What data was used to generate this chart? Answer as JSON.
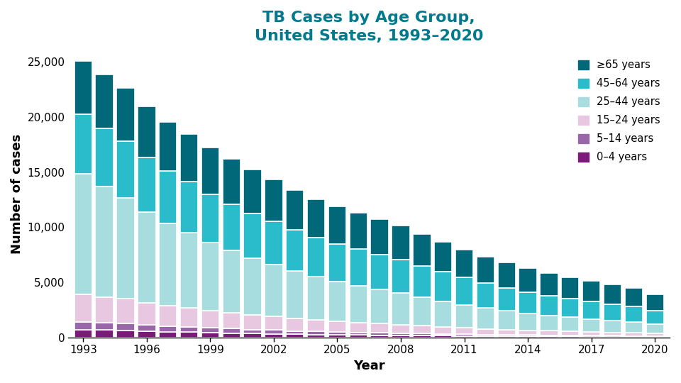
{
  "title": "TB Cases by Age Group,\nUnited States, 1993–2020",
  "xlabel": "Year",
  "ylabel": "Number of cases",
  "title_color": "#007A8C",
  "years": [
    1993,
    1994,
    1995,
    1996,
    1997,
    1998,
    1999,
    2000,
    2001,
    2002,
    2003,
    2004,
    2005,
    2006,
    2007,
    2008,
    2009,
    2010,
    2011,
    2012,
    2013,
    2014,
    2015,
    2016,
    2017,
    2018,
    2019,
    2020
  ],
  "age_groups": [
    {
      "label": "0–4 years",
      "color": "#7B1A7B",
      "values": [
        739,
        682,
        659,
        601,
        536,
        493,
        432,
        393,
        357,
        327,
        297,
        272,
        252,
        229,
        218,
        204,
        183,
        168,
        153,
        139,
        129,
        122,
        111,
        103,
        95,
        89,
        82,
        69
      ]
    },
    {
      "label": "5–14 years",
      "color": "#9966AA",
      "values": [
        676,
        637,
        617,
        555,
        521,
        483,
        449,
        418,
        379,
        352,
        313,
        286,
        261,
        247,
        231,
        214,
        196,
        179,
        162,
        147,
        133,
        118,
        106,
        97,
        87,
        80,
        72,
        62
      ]
    },
    {
      "label": "15–24 years",
      "color": "#E8C8E0",
      "values": [
        2528,
        2358,
        2228,
        2025,
        1839,
        1717,
        1567,
        1445,
        1328,
        1229,
        1129,
        1038,
        957,
        884,
        824,
        766,
        694,
        634,
        573,
        517,
        471,
        431,
        396,
        364,
        336,
        310,
        285,
        246
      ]
    },
    {
      "label": "25–44 years",
      "color": "#A8DDE0",
      "values": [
        10887,
        9978,
        9126,
        8218,
        7432,
        6838,
        6176,
        5637,
        5157,
        4740,
        4317,
        3929,
        3630,
        3337,
        3091,
        2855,
        2574,
        2327,
        2096,
        1884,
        1699,
        1537,
        1403,
        1278,
        1172,
        1073,
        986,
        840
      ]
    },
    {
      "label": "45–64 years",
      "color": "#2BBCCC",
      "values": [
        5416,
        5290,
        5155,
        4948,
        4739,
        4590,
        4383,
        4201,
        4038,
        3876,
        3678,
        3516,
        3413,
        3315,
        3181,
        3039,
        2839,
        2649,
        2453,
        2265,
        2079,
        1921,
        1786,
        1662,
        1564,
        1469,
        1397,
        1218
      ]
    },
    {
      "label": "≥65 years",
      "color": "#006878",
      "values": [
        4795,
        4914,
        4839,
        4606,
        4477,
        4299,
        4187,
        4088,
        3939,
        3793,
        3619,
        3481,
        3381,
        3278,
        3172,
        3050,
        2879,
        2718,
        2554,
        2405,
        2276,
        2166,
        2052,
        1952,
        1863,
        1774,
        1699,
        1481
      ]
    }
  ],
  "ylim": [
    0,
    26000
  ],
  "yticks": [
    0,
    5000,
    10000,
    15000,
    20000,
    25000
  ],
  "ytick_labels": [
    "0",
    "5,000",
    "10,000",
    "15,000",
    "20,000",
    "25,000"
  ],
  "xticks": [
    1993,
    1996,
    1999,
    2002,
    2005,
    2008,
    2011,
    2014,
    2017,
    2020
  ],
  "background_color": "#ffffff",
  "bar_width": 0.85
}
